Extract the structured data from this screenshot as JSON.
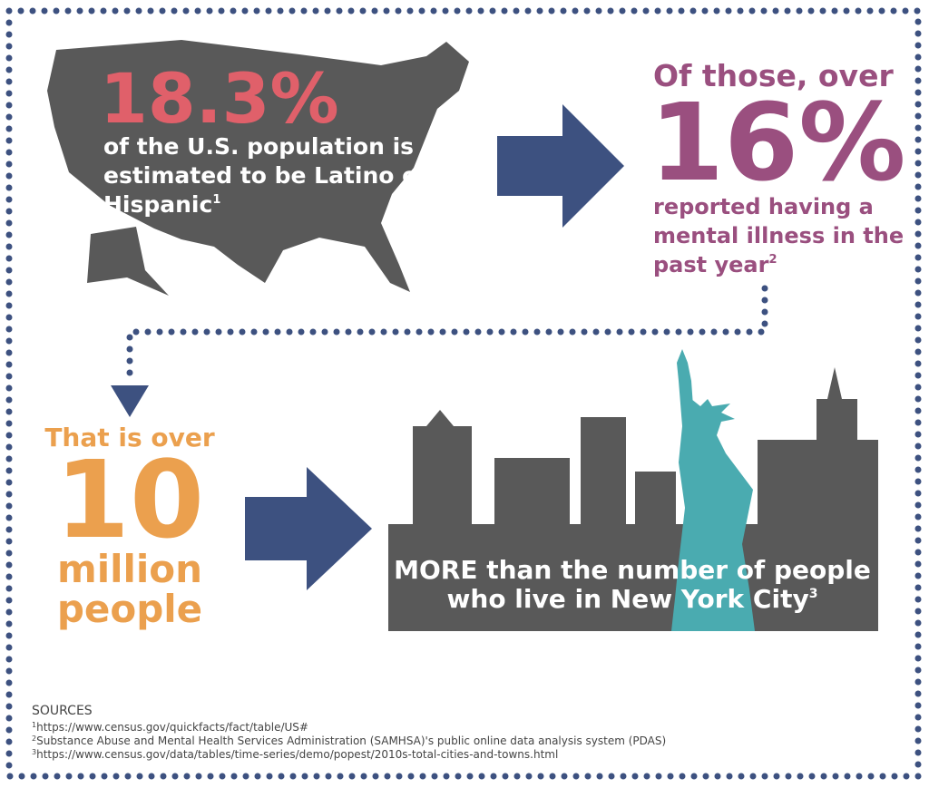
{
  "usa": {
    "stat": "18.3%",
    "lines": [
      "of the U.S. population is",
      "estimated to be Latino or",
      "Hispanic"
    ],
    "note": "1"
  },
  "mental_illness": {
    "intro": "Of those, over",
    "stat": "16%",
    "lines": [
      "reported having a",
      "mental illness in the",
      "past year"
    ],
    "note": "2"
  },
  "people": {
    "intro": "That is over",
    "stat": "10",
    "lines": [
      "million",
      "people"
    ]
  },
  "nyc": {
    "lines": [
      "MORE than the number of people",
      "who live in New York City"
    ],
    "note": "3"
  },
  "sources": {
    "heading": "SOURCES",
    "items": [
      {
        "note": "1",
        "text": "https://www.census.gov/quickfacts/fact/table/US#"
      },
      {
        "note": "2",
        "text": "Substance Abuse and Mental Health Services Administration (SAMHSA)'s public online data analysis system (PDAS)"
      },
      {
        "note": "3",
        "text": "https://www.census.gov/data/tables/time-series/demo/popest/2010s-total-cities-and-towns.html"
      }
    ]
  }
}
